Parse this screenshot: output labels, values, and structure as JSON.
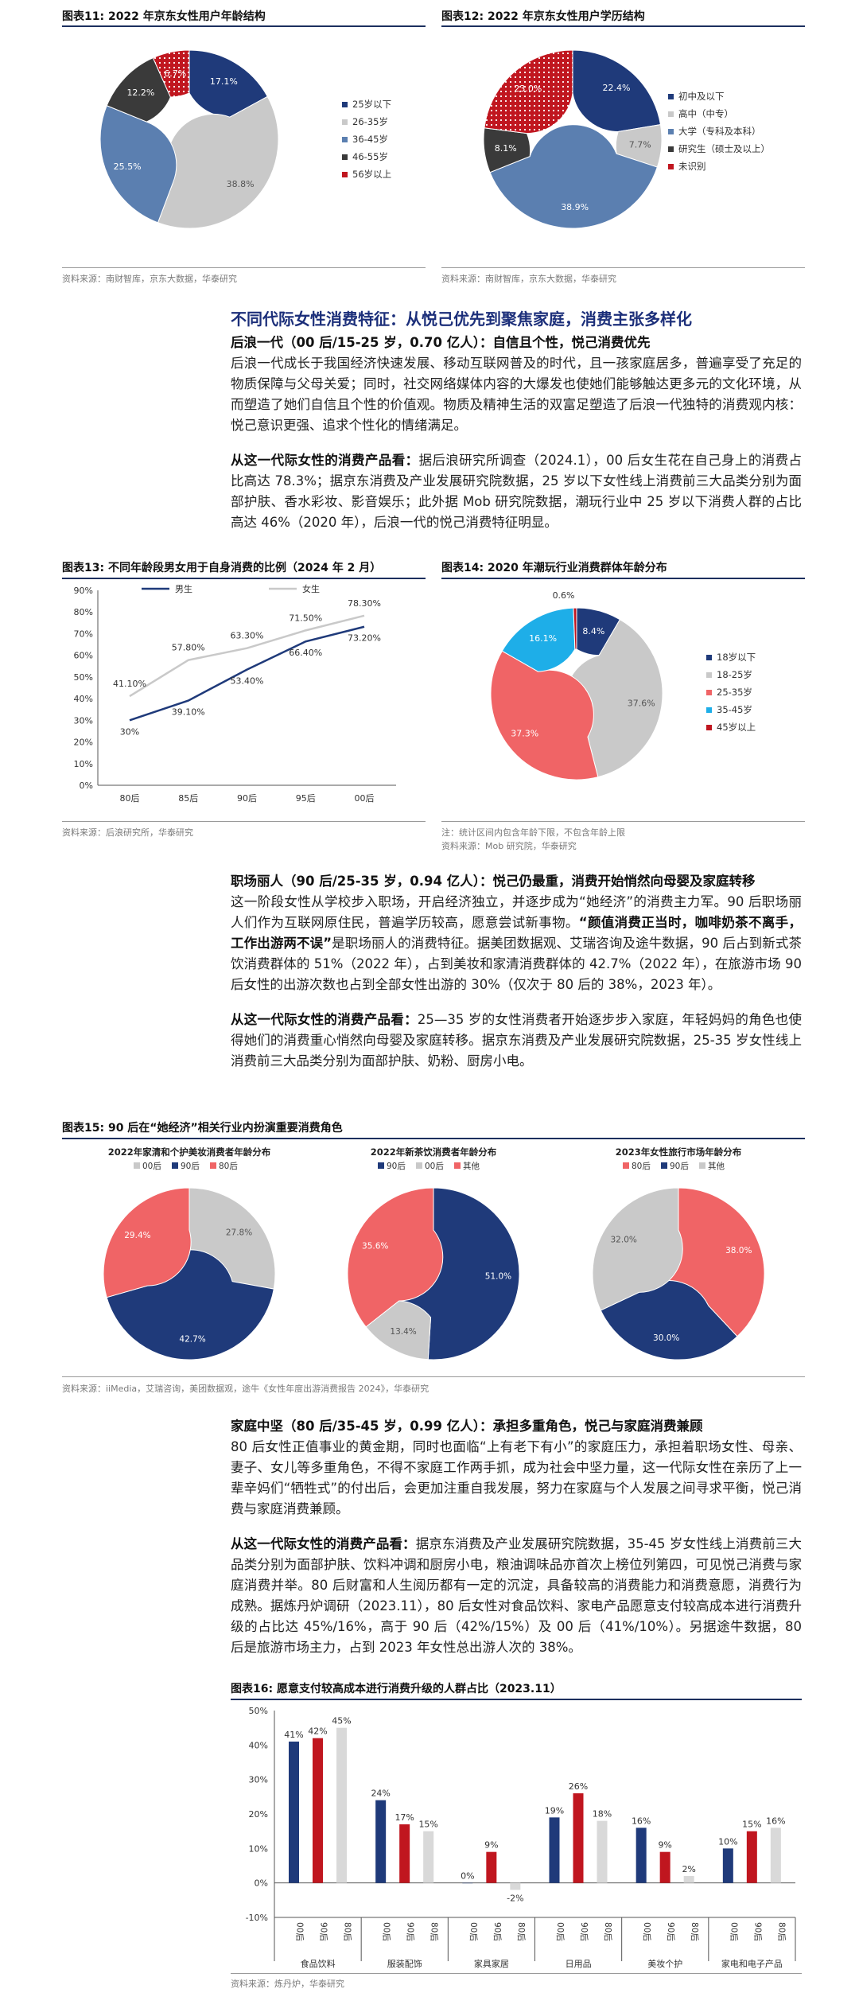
{
  "colors": {
    "navy": "#1f3a7a",
    "grey": "#c9c9c9",
    "steel": "#5b7fb0",
    "dark": "#3a3a3a",
    "red": "#c0161f",
    "coral": "#f06466",
    "cyan": "#1eaee8",
    "lightgrey": "#d9d9d9",
    "heading": "#1c2f7a"
  },
  "fig11": {
    "title": "图表11:  2022 年京东女性用户年龄结构",
    "source": "资料来源：南财智库，京东大数据，华泰研究",
    "chart_data": {
      "type": "pie",
      "donut": true,
      "slices": [
        {
          "label": "25岁以下",
          "value": 17.1,
          "text": "17.1%",
          "color": "#1f3a7a"
        },
        {
          "label": "26-35岁",
          "value": 38.8,
          "text": "38.8%",
          "color": "#c9c9c9"
        },
        {
          "label": "36-45岁",
          "value": 25.5,
          "text": "25.5%",
          "color": "#5b7fb0"
        },
        {
          "label": "46-55岁",
          "value": 12.2,
          "text": "12.2%",
          "color": "#3a3a3a"
        },
        {
          "label": "56岁以上",
          "value": 6.7,
          "text": "6.7%",
          "color": "#c0161f",
          "dotted": true
        }
      ]
    }
  },
  "fig12": {
    "title": "图表12:  2022 年京东女性用户学历结构",
    "source": "资料来源：南财智库，京东大数据，华泰研究",
    "chart_data": {
      "type": "pie",
      "donut": true,
      "slices": [
        {
          "label": "初中及以下",
          "value": 22.4,
          "text": "22.4%",
          "color": "#1f3a7a"
        },
        {
          "label": "高中（中专）",
          "value": 7.7,
          "text": "7.7%",
          "color": "#c9c9c9"
        },
        {
          "label": "大学（专科及本科）",
          "value": 38.9,
          "text": "38.9%",
          "color": "#5b7fb0"
        },
        {
          "label": "研究生（硕士及以上）",
          "value": 8.1,
          "text": "8.1%",
          "color": "#3a3a3a"
        },
        {
          "label": "未识别",
          "value": 23.0,
          "text": "23.0%",
          "color": "#c0161f",
          "dotted": true
        }
      ]
    }
  },
  "section1": {
    "headline": "不同代际女性消费特征：从悦己优先到聚焦家庭，消费主张多样化",
    "p1_bold": "后浪一代（00 后/15-25 岁，0.70 亿人）：自信且个性，悦己消费优先",
    "p1": "后浪一代成长于我国经济快速发展、移动互联网普及的时代，且一孩家庭居多，普遍享受了充足的物质保障与父母关爱；同时，社交网络媒体内容的大爆发也使她们能够触达更多元的文化环境，从而塑造了她们自信且个性的价值观。物质及精神生活的双富足塑造了后浪一代独特的消费观内核：悦己意识更强、追求个性化的情绪满足。",
    "p2_bold": "从这一代际女性的消费产品看：",
    "p2": "据后浪研究所调查（2024.1），00 后女生花在自己身上的消费占比高达 78.3%；据京东消费及产业发展研究院数据，25 岁以下女性线上消费前三大品类分别为面部护肤、香水彩妆、影音娱乐；此外据 Mob 研究院数据，潮玩行业中 25 岁以下消费人群的占比高达 46%（2020 年），后浪一代的悦己消费特征明显。"
  },
  "fig13": {
    "title": "图表13:  不同年龄段男女用于自身消费的比例（2024 年 2 月）",
    "source": "资料来源：后浪研究所，华泰研究",
    "chart_data": {
      "type": "line",
      "categories": [
        "80后",
        "85后",
        "90后",
        "95后",
        "00后"
      ],
      "series": [
        {
          "name": "男生",
          "values": [
            30,
            39.1,
            53.4,
            66.4,
            73.2
          ],
          "labels": [
            "30%",
            "39.10%",
            "53.40%",
            "66.40%",
            "73.20%"
          ],
          "color": "#1f3a7a"
        },
        {
          "name": "女生",
          "values": [
            41.1,
            57.8,
            63.3,
            71.5,
            78.3
          ],
          "labels": [
            "41.10%",
            "57.80%",
            "63.30%",
            "71.50%",
            "78.30%"
          ],
          "color": "#c9c9c9"
        }
      ],
      "yticks": [
        "0%",
        "10%",
        "20%",
        "30%",
        "40%",
        "50%",
        "60%",
        "70%",
        "80%",
        "90%"
      ],
      "ylim": [
        0,
        90
      ]
    }
  },
  "fig14": {
    "title": "图表14:  2020 年潮玩行业消费群体年龄分布",
    "note": "注：统计区间内包含年龄下限，不包含年龄上限",
    "source": "资料来源：Mob 研究院，华泰研究",
    "chart_data": {
      "type": "pie",
      "donut": true,
      "slices": [
        {
          "label": "18岁以下",
          "value": 8.4,
          "text": "8.4%",
          "color": "#1f3a7a"
        },
        {
          "label": "18-25岁",
          "value": 37.6,
          "text": "37.6%",
          "color": "#c9c9c9"
        },
        {
          "label": "25-35岁",
          "value": 37.3,
          "text": "37.3%",
          "color": "#f06466"
        },
        {
          "label": "35-45岁",
          "value": 16.1,
          "text": "16.1%",
          "color": "#1eaee8"
        },
        {
          "label": "45岁以上",
          "value": 0.6,
          "text": "0.6%",
          "color": "#c0161f"
        }
      ]
    }
  },
  "section2": {
    "p1_bold": "职场丽人（90 后/25-35 岁，0.94 亿人）：悦己仍最重，消费开始悄然向母婴及家庭转移",
    "p1a": "这一阶段女性从学校步入职场，开启经济独立，并逐步成为“她经济”的消费主力军。90 后职场丽人们作为互联网原住民，普遍学历较高，愿意尝试新事物。",
    "p1_quote": "“颜值消费正当时，咖啡奶茶不离手，工作出游两不误”",
    "p1b": "是职场丽人的消费特征。据美团数据观、艾瑞咨询及途牛数据，90 后占到新式茶饮消费群体的 51%（2022 年），占到美妆和家清消费群体的 42.7%（2022 年），在旅游市场 90 后女性的出游次数也占到全部女性出游的 30%（仅次于 80 后的 38%，2023 年）。",
    "p2_bold": "从这一代际女性的消费产品看：",
    "p2": "25—35 岁的女性消费者开始逐步步入家庭，年轻妈妈的角色也使得她们的消费重心悄然向母婴及家庭转移。据京东消费及产业发展研究院数据，25-35 岁女性线上消费前三大品类分别为面部护肤、奶粉、厨房小电。"
  },
  "fig15": {
    "title": "图表15:  90 后在“她经济”相关行业内扮演重要消费角色",
    "source": "资料来源：iiMedia，艾瑞咨询，美团数据观，途牛《女性年度出游消费报告 2024》，华泰研究",
    "chart_data": [
      {
        "type": "pie",
        "donut": true,
        "title": "2022年家清和个护美妆消费者年龄分布",
        "slices": [
          {
            "label": "00后",
            "value": 27.8,
            "text": "27.8%",
            "color": "#c9c9c9"
          },
          {
            "label": "90后",
            "value": 42.7,
            "text": "42.7%",
            "color": "#1f3a7a"
          },
          {
            "label": "80后",
            "value": 29.4,
            "text": "29.4%",
            "color": "#f06466"
          }
        ]
      },
      {
        "type": "pie",
        "donut": true,
        "title": "2022年新茶饮消费者年龄分布",
        "slices": [
          {
            "label": "90后",
            "value": 51.0,
            "text": "51.0%",
            "color": "#1f3a7a"
          },
          {
            "label": "00后",
            "value": 13.4,
            "text": "13.4%",
            "color": "#c9c9c9"
          },
          {
            "label": "其他",
            "value": 35.6,
            "text": "35.6%",
            "color": "#f06466"
          }
        ]
      },
      {
        "type": "pie",
        "donut": true,
        "title": "2023年女性旅行市场年龄分布",
        "slices": [
          {
            "label": "80后",
            "value": 38.0,
            "text": "38.0%",
            "color": "#f06466"
          },
          {
            "label": "90后",
            "value": 30.0,
            "text": "30.0%",
            "color": "#1f3a7a"
          },
          {
            "label": "其他",
            "value": 32.0,
            "text": "32.0%",
            "color": "#c9c9c9"
          }
        ]
      }
    ]
  },
  "section3": {
    "p1_bold": "家庭中坚（80 后/35-45 岁，0.99 亿人）：承担多重角色，悦己与家庭消费兼顾",
    "p1": "80 后女性正值事业的黄金期，同时也面临“上有老下有小”的家庭压力，承担着职场女性、母亲、妻子、女儿等多重角色，不得不家庭工作两手抓，成为社会中坚力量，这一代际女性在亲历了上一辈辛妈们“牺牲式”的付出后，会更加注重自我发展，努力在家庭与个人发展之间寻求平衡，悦己消费与家庭消费兼顾。",
    "p2_bold": "从这一代际女性的消费产品看：",
    "p2": "据京东消费及产业发展研究院数据，35-45 岁女性线上消费前三大品类分别为面部护肤、饮料冲调和厨房小电，粮油调味品亦首次上榜位列第四，可见悦己消费与家庭消费并举。80 后财富和人生阅历都有一定的沉淀，具备较高的消费能力和消费意愿，消费行为成熟。据炼丹炉调研（2023.11），80 后女性对食品饮料、家电产品愿意支付较高成本进行消费升级的占比达 45%/16%，高于 90 后（42%/15%）及 00 后（41%/10%）。另据途牛数据，80 后是旅游市场主力，占到 2023 年女性总出游人次的 38%。"
  },
  "fig16": {
    "title": "图表16:  愿意支付较高成本进行消费升级的人群占比（2023.11）",
    "source": "资料来源：炼丹炉，华泰研究",
    "chart_data": {
      "type": "bar",
      "groups": [
        "食品饮料",
        "服装配饰",
        "家具家居",
        "日用品",
        "美妆个护",
        "家电和电子产品"
      ],
      "subcategories": [
        "00后",
        "90后",
        "80后"
      ],
      "values": [
        [
          41,
          42,
          45
        ],
        [
          24,
          17,
          15
        ],
        [
          0,
          9,
          -2
        ],
        [
          19,
          26,
          18
        ],
        [
          16,
          9,
          2
        ],
        [
          10,
          15,
          16
        ]
      ],
      "labels": [
        [
          "41%",
          "42%",
          "45%"
        ],
        [
          "24%",
          "17%",
          "15%"
        ],
        [
          "0%",
          "9%",
          "-2%"
        ],
        [
          "19%",
          "26%",
          "18%"
        ],
        [
          "16%",
          "9%",
          "2%"
        ],
        [
          "10%",
          "15%",
          "16%"
        ]
      ],
      "colors": [
        "#1f3a7a",
        "#c0161f",
        "#d9d9d9"
      ],
      "yticks": [
        "-10%",
        "0%",
        "10%",
        "20%",
        "30%",
        "40%",
        "50%"
      ],
      "ylim": [
        -10,
        50
      ]
    }
  }
}
